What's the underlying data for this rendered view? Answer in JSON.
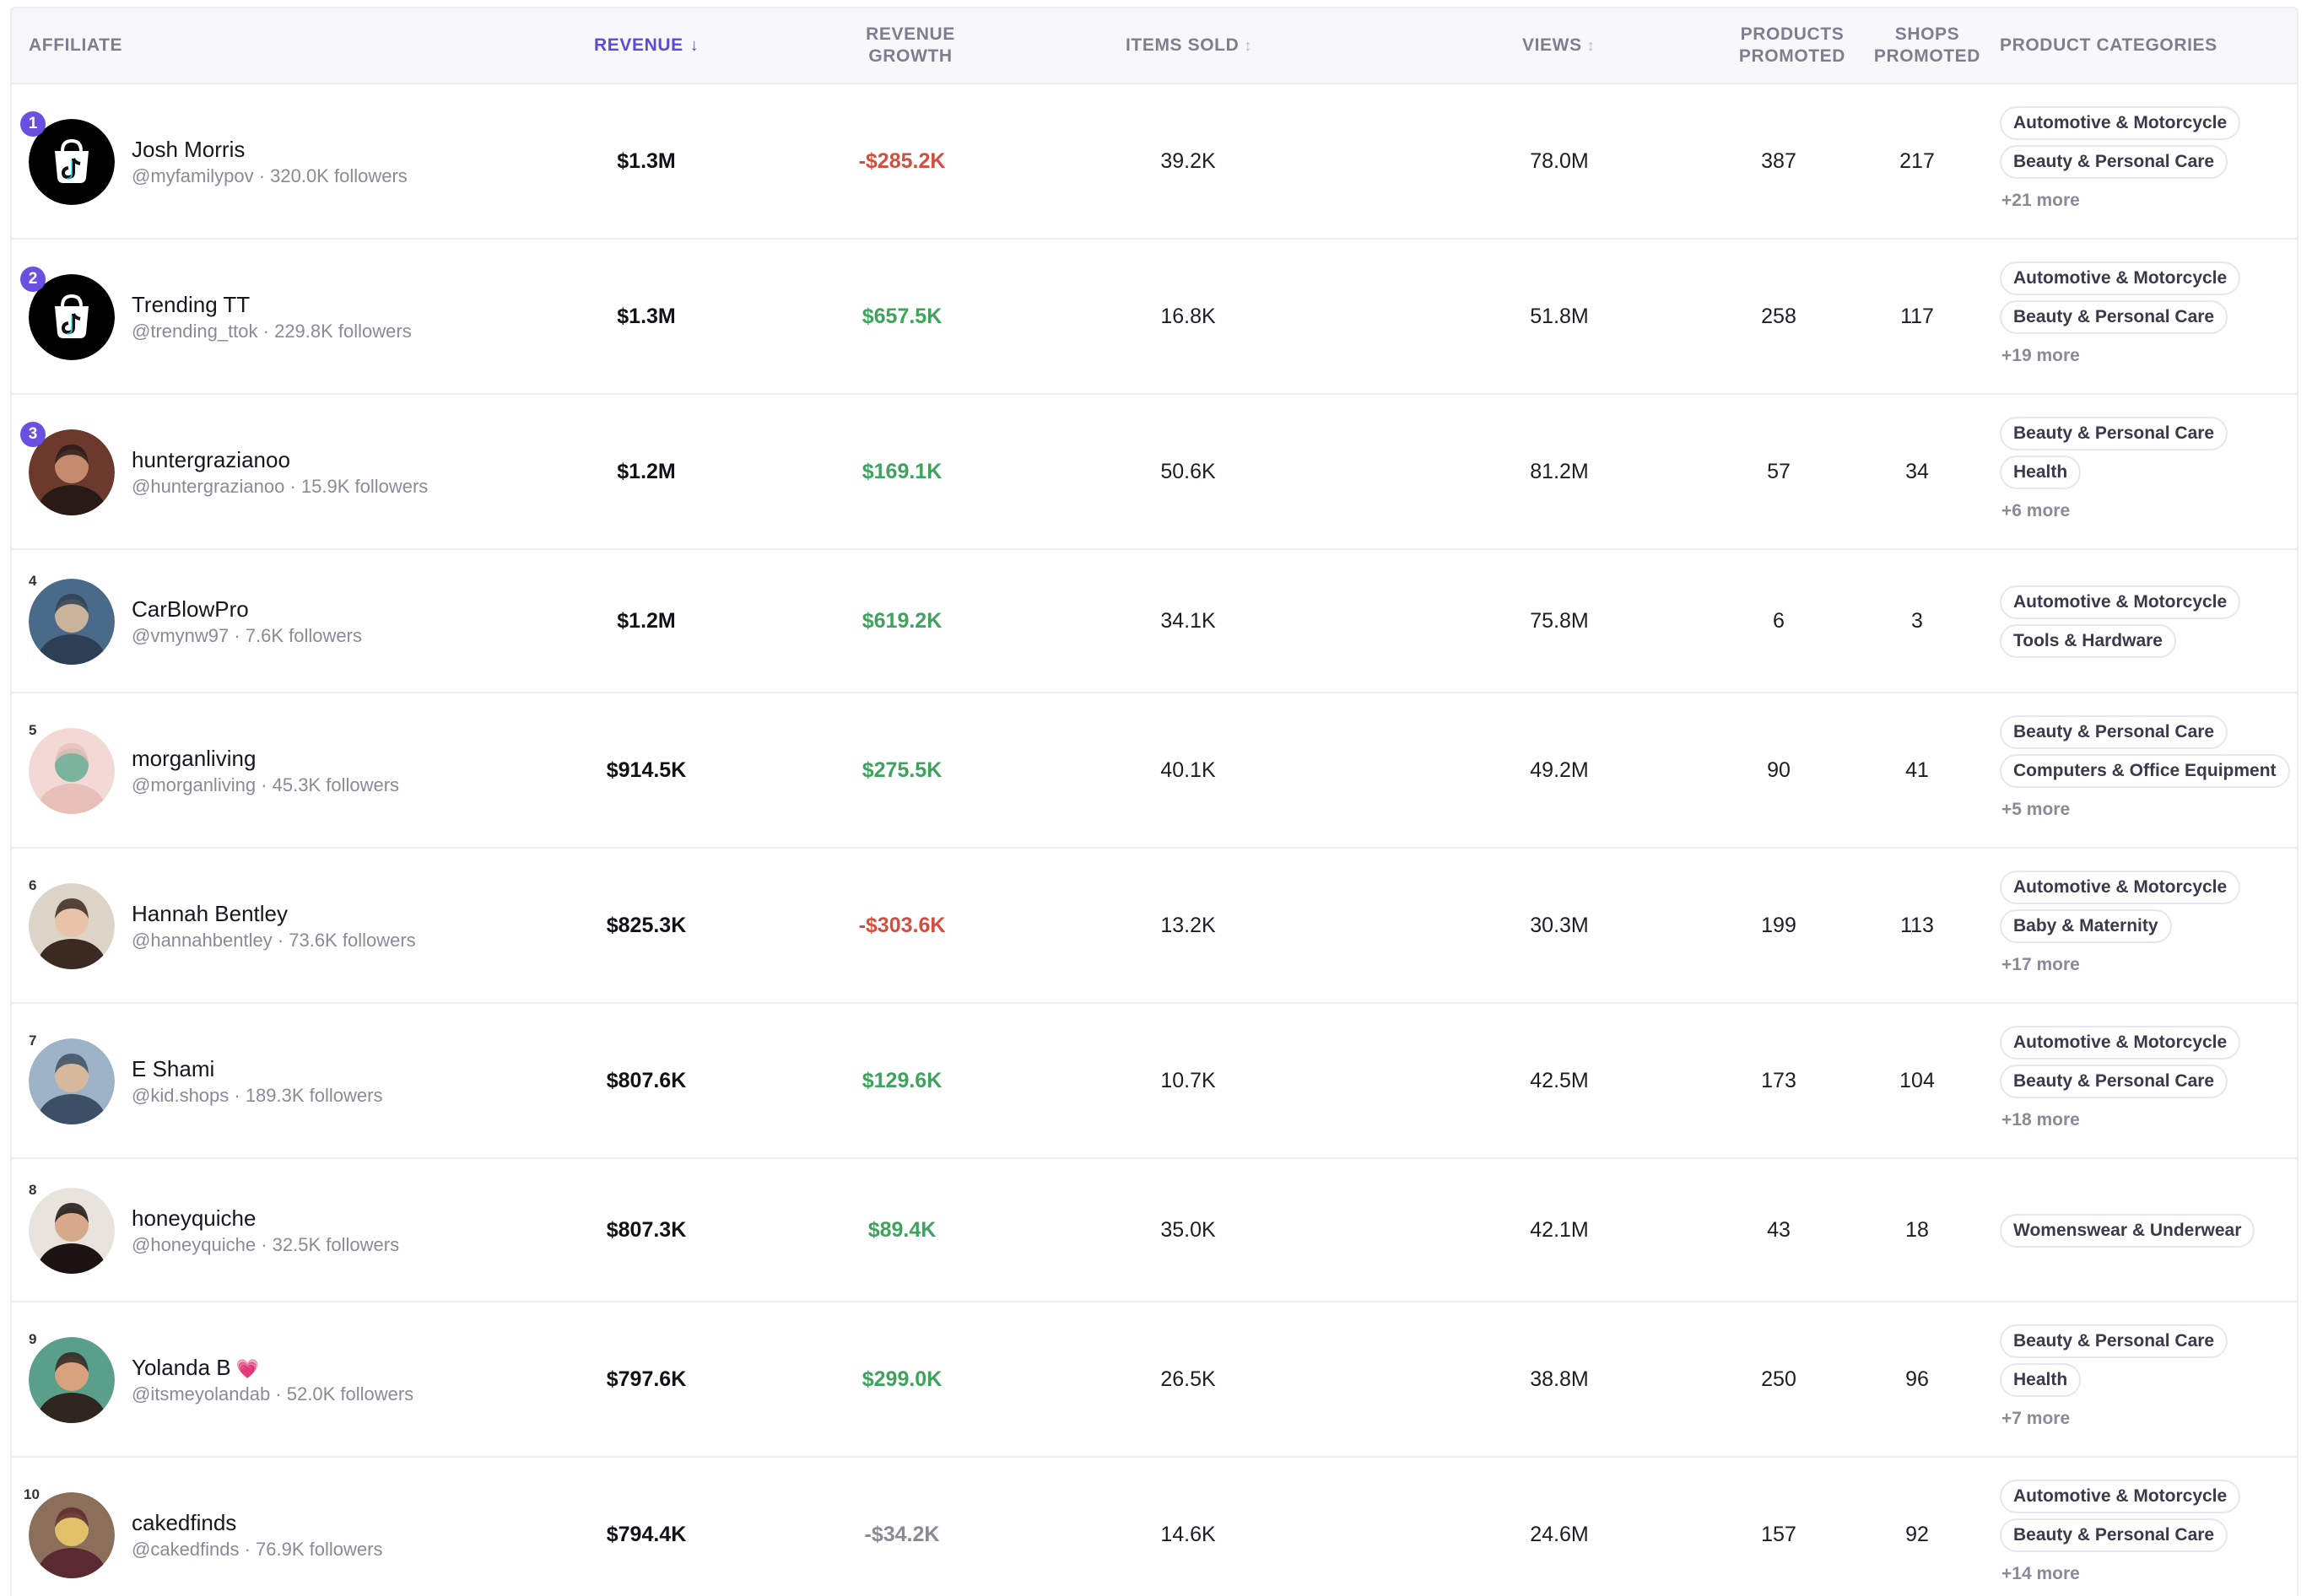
{
  "columns": {
    "affiliate": "AFFILIATE",
    "revenue": "REVENUE",
    "revenue_sort_arrow": "↓",
    "revenue_growth_line1": "REVENUE",
    "revenue_growth_line2": "GROWTH",
    "items_sold": "ITEMS SOLD",
    "views": "VIEWS",
    "sort_icon": "↕",
    "products_promoted_line1": "PRODUCTS",
    "products_promoted_line2": "PROMOTED",
    "shops_promoted_line1": "SHOPS",
    "shops_promoted_line2": "PROMOTED",
    "product_categories": "PRODUCT CATEGORIES"
  },
  "rows": [
    {
      "rank": "1",
      "name": "Josh Morris",
      "handle": "@myfamilypov · 320.0K followers",
      "revenue": "$1.3M",
      "growth": "-$285.2K",
      "growth_type": "neg",
      "items_sold": "39.2K",
      "views": "78.0M",
      "products_promoted": "387",
      "shops_promoted": "217",
      "categories": [
        "Automotive & Motorcycle",
        "Beauty & Personal Care"
      ],
      "more": "+21 more",
      "avatar": "tiktok-logo-icon"
    },
    {
      "rank": "2",
      "name": "Trending TT",
      "handle": "@trending_ttok · 229.8K followers",
      "revenue": "$1.3M",
      "growth": "$657.5K",
      "growth_type": "pos",
      "items_sold": "16.8K",
      "views": "51.8M",
      "products_promoted": "258",
      "shops_promoted": "117",
      "categories": [
        "Automotive & Motorcycle",
        "Beauty & Personal Care"
      ],
      "more": "+19 more",
      "avatar": "tiktok-logo-icon"
    },
    {
      "rank": "3",
      "name": "huntergrazianoo",
      "handle": "@huntergrazianoo · 15.9K followers",
      "revenue": "$1.2M",
      "growth": "$169.1K",
      "growth_type": "pos",
      "items_sold": "50.6K",
      "views": "81.2M",
      "products_promoted": "57",
      "shops_promoted": "34",
      "categories": [
        "Beauty & Personal Care",
        "Health"
      ],
      "more": "+6 more",
      "avatar": "profile-photo"
    },
    {
      "rank": "4",
      "name": "CarBlowPro",
      "handle": "@vmynw97 · 7.6K followers",
      "revenue": "$1.2M",
      "growth": "$619.2K",
      "growth_type": "pos",
      "items_sold": "34.1K",
      "views": "75.8M",
      "products_promoted": "6",
      "shops_promoted": "3",
      "categories": [
        "Automotive & Motorcycle",
        "Tools & Hardware"
      ],
      "more": "",
      "avatar": "profile-photo"
    },
    {
      "rank": "5",
      "name": "morganliving",
      "handle": "@morganliving · 45.3K followers",
      "revenue": "$914.5K",
      "growth": "$275.5K",
      "growth_type": "pos",
      "items_sold": "40.1K",
      "views": "49.2M",
      "products_promoted": "90",
      "shops_promoted": "41",
      "categories": [
        "Beauty & Personal Care",
        "Computers & Office Equipment"
      ],
      "more": "+5 more",
      "avatar": "profile-photo"
    },
    {
      "rank": "6",
      "name": "Hannah Bentley",
      "handle": "@hannahbentley · 73.6K followers",
      "revenue": "$825.3K",
      "growth": "-$303.6K",
      "growth_type": "neg",
      "items_sold": "13.2K",
      "views": "30.3M",
      "products_promoted": "199",
      "shops_promoted": "113",
      "categories": [
        "Automotive & Motorcycle",
        "Baby & Maternity"
      ],
      "more": "+17 more",
      "avatar": "profile-photo"
    },
    {
      "rank": "7",
      "name": "E Shami",
      "handle": "@kid.shops · 189.3K followers",
      "revenue": "$807.6K",
      "growth": "$129.6K",
      "growth_type": "pos",
      "items_sold": "10.7K",
      "views": "42.5M",
      "products_promoted": "173",
      "shops_promoted": "104",
      "categories": [
        "Automotive & Motorcycle",
        "Beauty & Personal Care"
      ],
      "more": "+18 more",
      "avatar": "profile-photo"
    },
    {
      "rank": "8",
      "name": "honeyquiche",
      "handle": "@honeyquiche · 32.5K followers",
      "revenue": "$807.3K",
      "growth": "$89.4K",
      "growth_type": "pos",
      "items_sold": "35.0K",
      "views": "42.1M",
      "products_promoted": "43",
      "shops_promoted": "18",
      "categories": [
        "Womenswear & Underwear"
      ],
      "more": "",
      "avatar": "profile-photo"
    },
    {
      "rank": "9",
      "name": "Yolanda B",
      "name_emoji": "💗",
      "handle": "@itsmeyolandab · 52.0K followers",
      "revenue": "$797.6K",
      "growth": "$299.0K",
      "growth_type": "pos",
      "items_sold": "26.5K",
      "views": "38.8M",
      "products_promoted": "250",
      "shops_promoted": "96",
      "categories": [
        "Beauty & Personal Care",
        "Health"
      ],
      "more": "+7 more",
      "avatar": "profile-photo"
    },
    {
      "rank": "10",
      "name": "cakedfinds",
      "handle": "@cakedfinds · 76.9K followers",
      "revenue": "$794.4K",
      "growth": "-$34.2K",
      "growth_type": "negmuted",
      "items_sold": "14.6K",
      "views": "24.6M",
      "products_promoted": "157",
      "shops_promoted": "92",
      "categories": [
        "Automotive & Motorcycle",
        "Beauty & Personal Care"
      ],
      "more": "+14 more",
      "avatar": "profile-photo"
    }
  ],
  "colors": {
    "accent": "#5b4bd6",
    "rank_badge": "#6a4fe0",
    "negative": "#d24e3e",
    "positive": "#3da35d",
    "muted": "#8a8a98",
    "border": "#ececf1",
    "header_bg": "#f8f8fb"
  }
}
